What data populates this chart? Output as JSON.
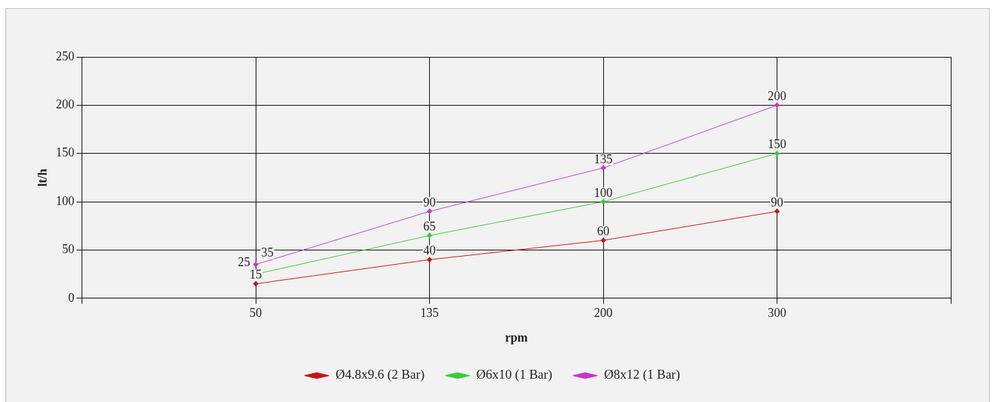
{
  "chart_data": {
    "type": "line",
    "xlabel": "rpm",
    "ylabel": "lt/h",
    "categories": [
      null,
      "50",
      "135",
      "200",
      "300",
      null
    ],
    "series": [
      {
        "name": "Ø4.8x9.6 (2 Bar)",
        "color": "#cc1111",
        "values": [
          null,
          15,
          40,
          60,
          90,
          null
        ]
      },
      {
        "name": "Ø6x10 (1 Bar)",
        "color": "#33cc33",
        "values": [
          null,
          25,
          65,
          100,
          150,
          null
        ]
      },
      {
        "name": "Ø8x12 (1 Bar)",
        "color": "#cc33cc",
        "values": [
          null,
          35,
          90,
          135,
          200,
          null
        ]
      }
    ],
    "ylim": [
      0,
      250
    ],
    "yticks": [
      0,
      50,
      100,
      150,
      200,
      250
    ],
    "grid": true,
    "legend": "bottom",
    "marker": "diamond",
    "line_style": "solid",
    "data_labels": true
  }
}
